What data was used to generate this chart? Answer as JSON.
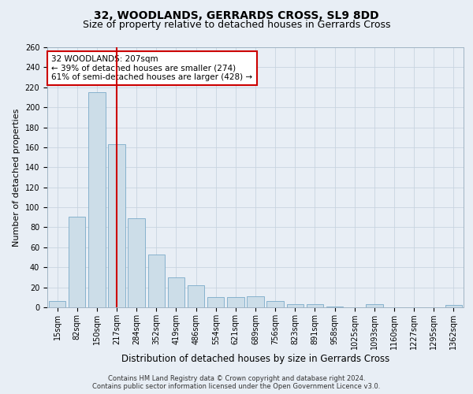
{
  "title": "32, WOODLANDS, GERRARDS CROSS, SL9 8DD",
  "subtitle": "Size of property relative to detached houses in Gerrards Cross",
  "xlabel": "Distribution of detached houses by size in Gerrards Cross",
  "ylabel": "Number of detached properties",
  "footer_line1": "Contains HM Land Registry data © Crown copyright and database right 2024.",
  "footer_line2": "Contains public sector information licensed under the Open Government Licence v3.0.",
  "categories": [
    "15sqm",
    "82sqm",
    "150sqm",
    "217sqm",
    "284sqm",
    "352sqm",
    "419sqm",
    "486sqm",
    "554sqm",
    "621sqm",
    "689sqm",
    "756sqm",
    "823sqm",
    "891sqm",
    "958sqm",
    "1025sqm",
    "1093sqm",
    "1160sqm",
    "1227sqm",
    "1295sqm",
    "1362sqm"
  ],
  "values": [
    6,
    91,
    215,
    163,
    89,
    53,
    30,
    22,
    10,
    10,
    11,
    6,
    3,
    3,
    1,
    0,
    3,
    0,
    0,
    0,
    2
  ],
  "bar_color": "#ccdde8",
  "bar_edge_color": "#7aaac8",
  "highlight_index": 3,
  "highlight_color": "#cc0000",
  "ylim": [
    0,
    260
  ],
  "yticks": [
    0,
    20,
    40,
    60,
    80,
    100,
    120,
    140,
    160,
    180,
    200,
    220,
    240,
    260
  ],
  "annotation_line1": "32 WOODLANDS: 207sqm",
  "annotation_line2": "← 39% of detached houses are smaller (274)",
  "annotation_line3": "61% of semi-detached houses are larger (428) →",
  "annotation_box_color": "#ffffff",
  "annotation_box_edge_color": "#cc0000",
  "grid_color": "#c8d4e0",
  "background_color": "#e8eef5",
  "title_fontsize": 10,
  "subtitle_fontsize": 9,
  "xlabel_fontsize": 8.5,
  "ylabel_fontsize": 8,
  "tick_fontsize": 7,
  "annotation_fontsize": 7.5,
  "footer_fontsize": 6
}
